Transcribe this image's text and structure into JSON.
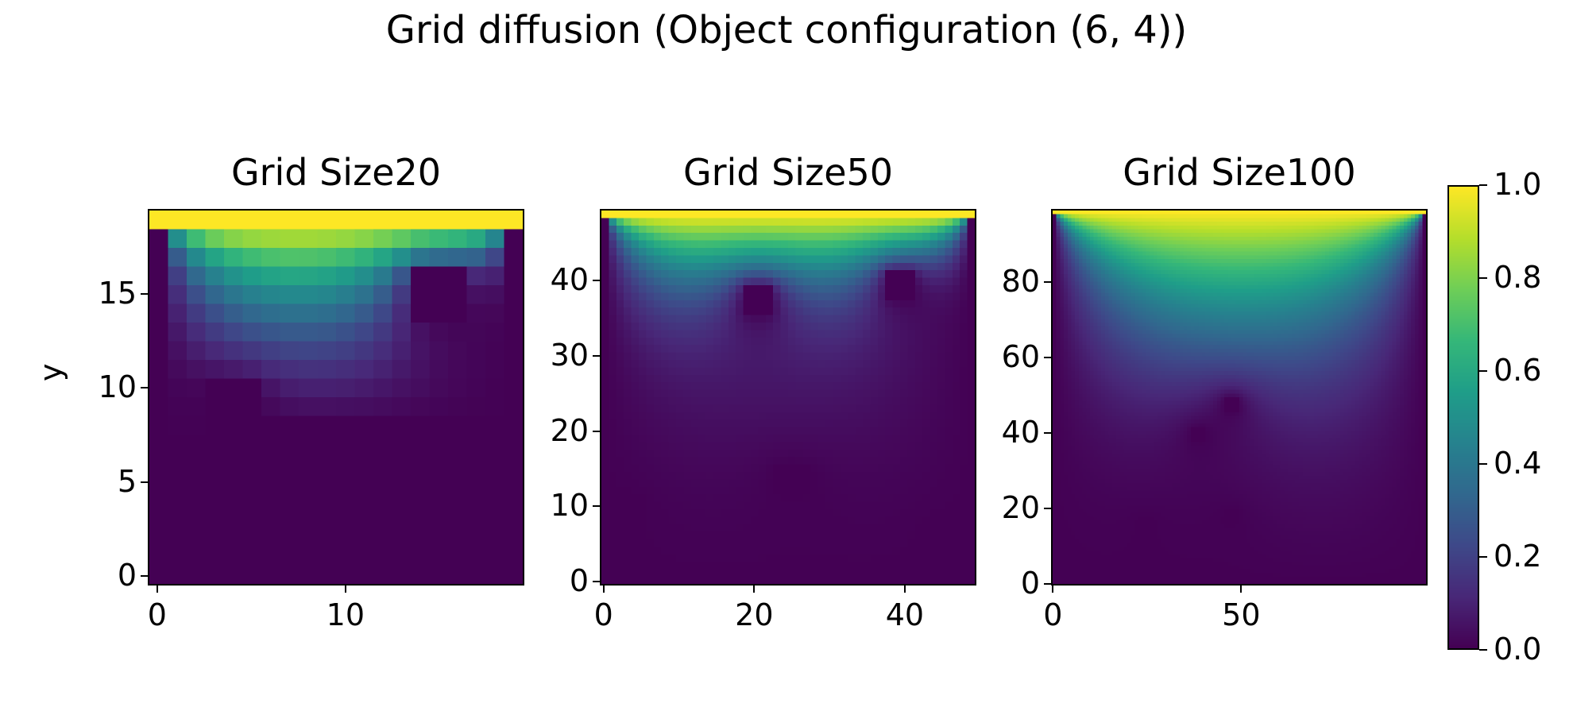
{
  "title": "Grid diffusion (Object configuration (6, 4))",
  "chart_data": [
    {
      "type": "heatmap",
      "title": "Grid Size20",
      "ylabel": "y",
      "xlabel": "",
      "n": 20,
      "xlim": [
        0,
        20
      ],
      "ylim": [
        0,
        20
      ],
      "xticks": [
        0,
        10
      ],
      "yticks": [
        0,
        5,
        10,
        15
      ],
      "boundary_value": 1.0,
      "objects": [
        {
          "x": [
            14,
            17
          ],
          "y": [
            14,
            17
          ]
        },
        {
          "x": [
            3,
            6
          ],
          "y": [
            9,
            11
          ]
        },
        {
          "x": [
            6,
            9
          ],
          "y": [
            3,
            9
          ]
        },
        {
          "x": [
            9,
            18
          ],
          "y": [
            3,
            9
          ]
        }
      ],
      "sample_values": {
        "row_19": 1.0,
        "row_18": 0.72,
        "row_15": 0.45,
        "row_12": 0.2,
        "row_5": 0.01
      }
    },
    {
      "type": "heatmap",
      "title": "Grid Size50",
      "xlabel": "",
      "ylabel": "",
      "n": 50,
      "xlim": [
        0,
        50
      ],
      "ylim": [
        0,
        50
      ],
      "xticks": [
        0,
        20,
        40
      ],
      "yticks": [
        0,
        10,
        20,
        30,
        40
      ],
      "boundary_value": 1.0,
      "objects": [
        {
          "x": [
            19,
            23
          ],
          "y": [
            36,
            40
          ]
        },
        {
          "x": [
            38,
            42
          ],
          "y": [
            38,
            42
          ]
        },
        {
          "x": [
            23,
            28
          ],
          "y": [
            12,
            16
          ]
        },
        {
          "x": [
            2,
            6
          ],
          "y": [
            9,
            12
          ]
        },
        {
          "x": [
            43,
            47
          ],
          "y": [
            6,
            9
          ]
        }
      ],
      "sample_values": {
        "row_49": 1.0,
        "row_45": 0.7,
        "row_40": 0.45,
        "row_30": 0.22,
        "row_10": 0.04
      }
    },
    {
      "type": "heatmap",
      "title": "Grid Size100",
      "xlabel": "",
      "ylabel": "",
      "n": 100,
      "xlim": [
        0,
        100
      ],
      "ylim": [
        0,
        100
      ],
      "xticks": [
        0,
        50
      ],
      "yticks": [
        0,
        20,
        40,
        60,
        80
      ],
      "boundary_value": 1.0,
      "objects": [
        {
          "x": [
            46,
            50
          ],
          "y": [
            46,
            50
          ]
        },
        {
          "x": [
            37,
            41
          ],
          "y": [
            38,
            42
          ]
        },
        {
          "x": [
            23,
            27
          ],
          "y": [
            14,
            18
          ]
        },
        {
          "x": [
            46,
            50
          ],
          "y": [
            16,
            20
          ]
        }
      ],
      "sample_values": {
        "row_99": 0.98,
        "row_80": 0.7,
        "row_60": 0.45,
        "row_40": 0.22,
        "row_10": 0.04
      }
    }
  ],
  "colorbar": {
    "colormap": "viridis",
    "ticks": [
      "0.0",
      "0.2",
      "0.4",
      "0.6",
      "0.8",
      "1.0"
    ],
    "range": [
      0,
      1
    ],
    "label": ""
  }
}
